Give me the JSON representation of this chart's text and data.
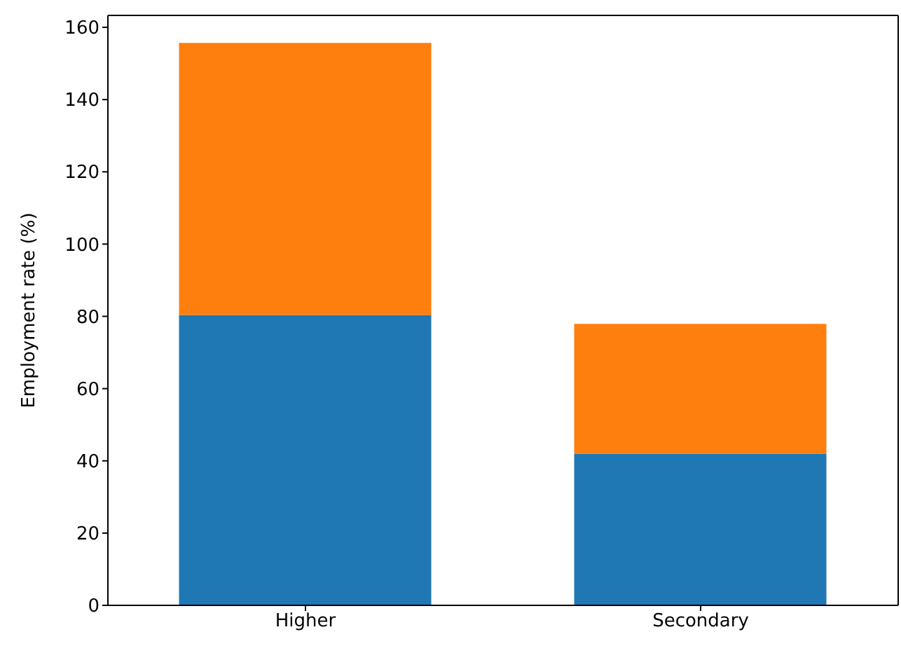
{
  "chart_data": {
    "type": "bar",
    "stacked": true,
    "ylabel": "Employment rate (%)",
    "categories": [
      "Higher",
      "Secondary"
    ],
    "series": [
      {
        "color": "#1f77b4",
        "values": [
          80.4,
          42.0
        ]
      },
      {
        "color": "#ff7f0e",
        "values": [
          75.3,
          35.9
        ]
      }
    ],
    "ylim": [
      0,
      163.3
    ],
    "yticks": [
      0,
      20,
      40,
      60,
      80,
      100,
      120,
      140,
      160
    ],
    "grid": false,
    "legend": false
  }
}
